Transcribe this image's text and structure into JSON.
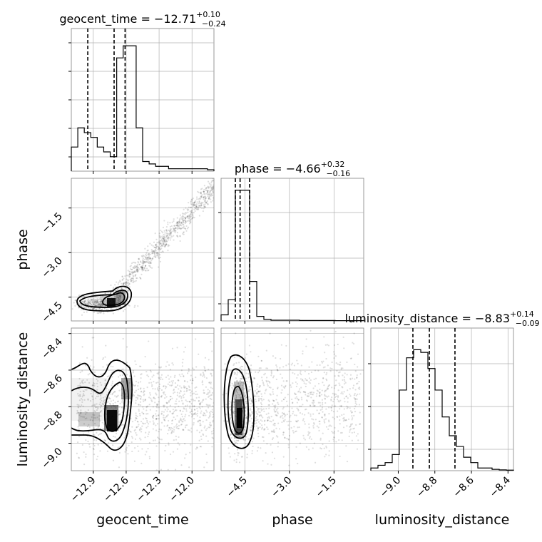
{
  "chart_data": {
    "type": "corner",
    "parameters": [
      "geocent_time",
      "phase",
      "luminosity_distance"
    ],
    "titles": [
      {
        "param": "geocent_time",
        "label": "geocent_time = −12.71",
        "plus": "+0.10",
        "minus": "−0.24"
      },
      {
        "param": "phase",
        "label": "phase = −4.66",
        "plus": "+0.32",
        "minus": "−0.16"
      },
      {
        "param": "luminosity_distance",
        "label": "luminosity_distance = −8.83",
        "plus": "+0.14",
        "minus": "−0.09"
      }
    ],
    "axis_labels": {
      "x": [
        "geocent_time",
        "phase",
        "luminosity_distance"
      ],
      "y": [
        "phase",
        "luminosity_distance"
      ]
    },
    "ranges": {
      "geocent_time": [
        -13.1,
        -11.8
      ],
      "phase": [
        -5.3,
        -0.5
      ],
      "luminosity_distance": [
        -9.15,
        -8.37
      ]
    },
    "ticks": {
      "geocent_time": [
        {
          "v": -12.9,
          "t": "−12.9"
        },
        {
          "v": -12.6,
          "t": "−12.6"
        },
        {
          "v": -12.3,
          "t": "−12.3"
        },
        {
          "v": -12.0,
          "t": "−12.0"
        }
      ],
      "phase": [
        {
          "v": -4.5,
          "t": "−4.5"
        },
        {
          "v": -3.0,
          "t": "−3.0"
        },
        {
          "v": -1.5,
          "t": "−1.5"
        }
      ],
      "luminosity_distance": [
        {
          "v": -9.0,
          "t": "−9.0"
        },
        {
          "v": -8.8,
          "t": "−8.8"
        },
        {
          "v": -8.6,
          "t": "−8.6"
        },
        {
          "v": -8.4,
          "t": "−8.4"
        }
      ]
    },
    "quantiles": {
      "geocent_time": [
        -12.95,
        -12.71,
        -12.61
      ],
      "phase": [
        -4.82,
        -4.66,
        -4.34
      ],
      "luminosity_distance": [
        -8.92,
        -8.83,
        -8.69
      ]
    },
    "histograms": {
      "geocent_time": {
        "range": [
          -13.1,
          -11.8
        ],
        "counts": [
          10,
          18,
          16,
          14,
          10,
          8,
          6,
          47,
          52,
          52,
          18,
          4,
          3,
          2,
          2,
          1,
          1,
          1,
          1,
          1,
          1,
          0.6
        ],
        "ymax": 58
      },
      "phase": {
        "range": [
          -5.3,
          -0.5
        ],
        "counts": [
          4,
          14,
          86,
          86,
          26,
          3,
          1,
          0.5,
          0.5,
          0.5,
          0.5,
          0.3,
          0.3,
          0.3,
          0.3,
          0.3,
          0.2,
          0.2,
          0.2,
          0.2
        ],
        "ymax": 92
      },
      "luminosity_distance": {
        "range": [
          -9.15,
          -8.37
        ],
        "counts": [
          1,
          2,
          3,
          6,
          30,
          42,
          45,
          44,
          38,
          30,
          20,
          13,
          9,
          5,
          3,
          1,
          1,
          0.5,
          0.3,
          0.2
        ],
        "ymax": 52
      }
    },
    "hist_ticks": {
      "geocent_time": [
        0.1,
        0.3,
        0.5,
        0.7,
        0.9
      ],
      "phase": [
        0.12,
        0.44,
        0.76
      ],
      "luminosity_distance": [
        0.15,
        0.45,
        0.75
      ]
    },
    "pairs": [
      {
        "x": "geocent_time",
        "y": "phase"
      },
      {
        "x": "geocent_time",
        "y": "luminosity_distance"
      },
      {
        "x": "phase",
        "y": "luminosity_distance"
      }
    ],
    "grid": true
  }
}
